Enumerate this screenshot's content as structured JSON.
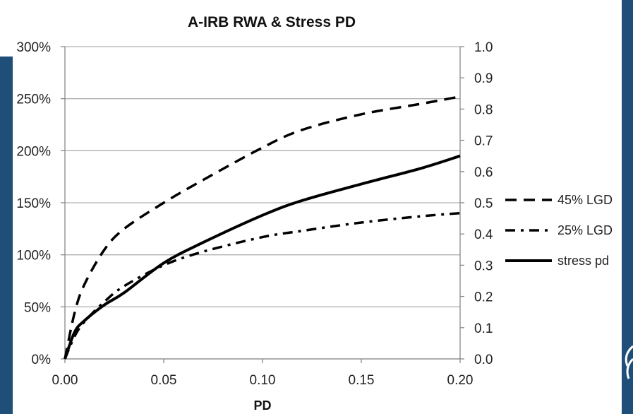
{
  "theme": {
    "side_bar_color": "#1f4e79",
    "line_color": "#000000",
    "grid_color": "#b0b0b0"
  },
  "chart_data": {
    "type": "line",
    "title": "A-IRB RWA & Stress PD",
    "xlabel": "PD",
    "ylabel": "",
    "y2label": "",
    "xlim": [
      0,
      0.2
    ],
    "ylim": [
      0,
      300
    ],
    "y2lim": [
      0,
      1.0
    ],
    "x_ticks": [
      "0.00",
      "0.05",
      "0.10",
      "0.15",
      "0.20"
    ],
    "y_ticks": [
      "0%",
      "50%",
      "100%",
      "150%",
      "200%",
      "250%",
      "300%"
    ],
    "y2_ticks": [
      "0.0",
      "0.1",
      "0.2",
      "0.3",
      "0.4",
      "0.5",
      "0.6",
      "0.7",
      "0.8",
      "0.9",
      "1.0"
    ],
    "grid": "horizontal",
    "legend_position": "right",
    "series": [
      {
        "name": "45% LGD",
        "axis": "left",
        "style": "dashed",
        "x": [
          0.0,
          0.005,
          0.01,
          0.02,
          0.03,
          0.05,
          0.07,
          0.1,
          0.12,
          0.15,
          0.18,
          0.2
        ],
        "values": [
          0,
          45,
          72,
          105,
          125,
          150,
          172,
          203,
          220,
          235,
          245,
          252
        ]
      },
      {
        "name": "25% LGD",
        "axis": "left",
        "style": "dash-dot",
        "x": [
          0.0,
          0.005,
          0.01,
          0.02,
          0.03,
          0.05,
          0.07,
          0.1,
          0.12,
          0.15,
          0.18,
          0.2
        ],
        "values": [
          0,
          22,
          36,
          55,
          70,
          90,
          103,
          117,
          123,
          131,
          137,
          140
        ]
      },
      {
        "name": "stress pd",
        "axis": "right",
        "style": "solid",
        "x": [
          0.0,
          0.005,
          0.01,
          0.02,
          0.03,
          0.05,
          0.07,
          0.1,
          0.12,
          0.15,
          0.18,
          0.2
        ],
        "values": [
          0.0,
          0.087,
          0.123,
          0.173,
          0.212,
          0.307,
          0.373,
          0.46,
          0.507,
          0.56,
          0.61,
          0.65
        ]
      }
    ]
  }
}
